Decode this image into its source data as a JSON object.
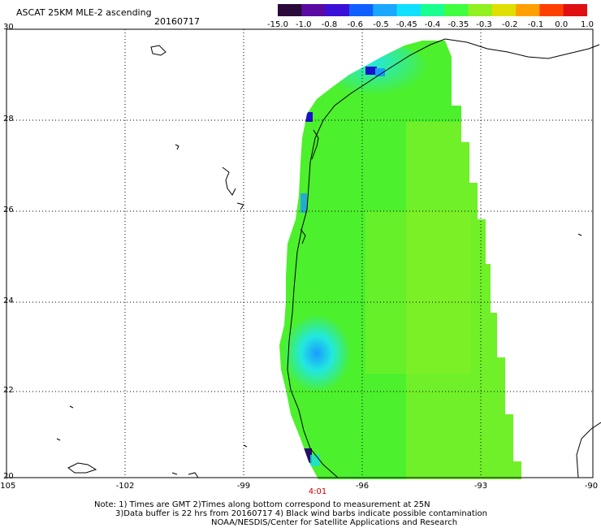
{
  "header": {
    "title": "ASCAT 25KM MLE-2 ascending",
    "date": "20160717"
  },
  "colorbar": {
    "labels": [
      "-15.0",
      "-1.0",
      "-0.8",
      "-0.6",
      "-0.5",
      "-0.45",
      "-0.4",
      "-0.35",
      "-0.3",
      "-0.2",
      "-0.1",
      "0.0",
      "1.0"
    ],
    "colors": [
      "#2a0a3a",
      "#5a0aa0",
      "#3a10d8",
      "#1060ff",
      "#1aa8ff",
      "#10e0ff",
      "#18ff90",
      "#40ff40",
      "#90f020",
      "#e0e000",
      "#ffa000",
      "#ff4000",
      "#e01010"
    ]
  },
  "axes": {
    "lat_labels": [
      "30",
      "28",
      "26",
      "24",
      "22",
      "20"
    ],
    "lon_labels": [
      "-105",
      "-102",
      "-99",
      "-96",
      "-93",
      "-90"
    ]
  },
  "orbit_time": "4:01",
  "notes": {
    "line1": "Note: 1) Times are GMT 2)Times along bottom correspond to measurement at 25N",
    "line2": "3)Data buffer is 22 hrs from 20160717 4) Black wind barbs indicate possible contamination",
    "line3": "NOAA/NESDIS/Center for Satellite Applications and Research"
  },
  "colors": {
    "field_main": "#4cf02c",
    "field_east": "#8ef026",
    "field_cyan": "#22f0d8",
    "field_blue": "#1a9aff",
    "field_dark": "#2a10c8"
  }
}
